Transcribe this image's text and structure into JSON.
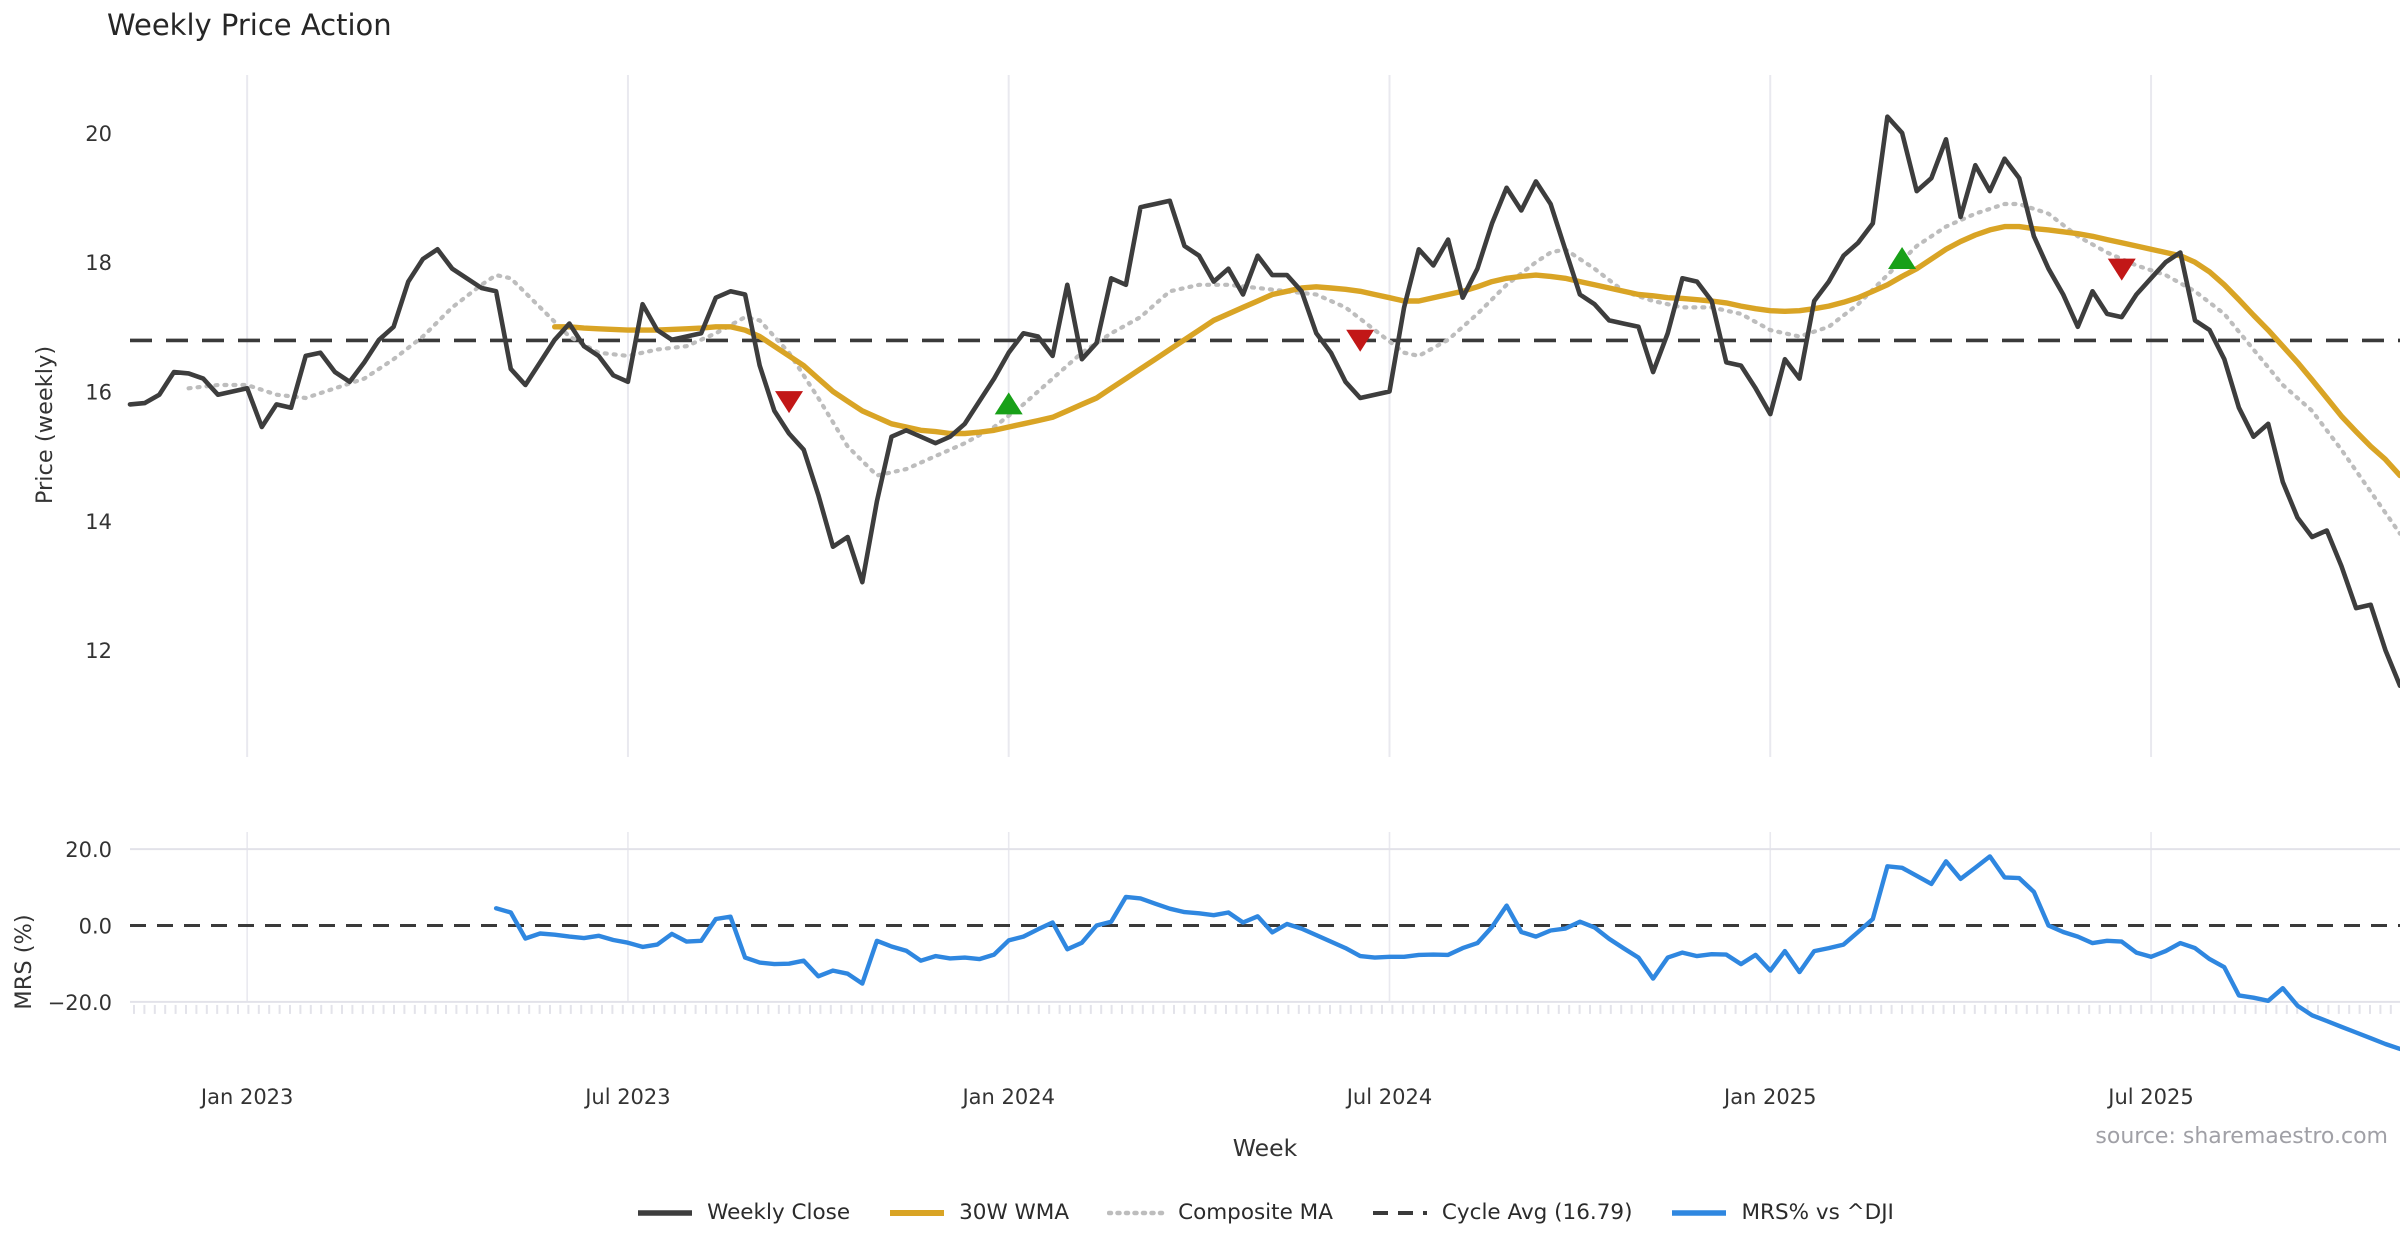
{
  "title": "Weekly Price Action",
  "source_note": "source: sharemaestro.com",
  "colors": {
    "close": "#3d3d3d",
    "wma": "#d9a425",
    "composite": "#bdbdbd",
    "cycle": "#3a3a3a",
    "mrs": "#2f87e0",
    "sell": "#c21717",
    "buy": "#18a018",
    "grid": "#e9e9ef",
    "mrs_grid": "#e2e2e9",
    "minor_tick": "#e3e3ea",
    "tick_text": "#333333"
  },
  "chart_data": {
    "type": "line",
    "x_label": "Week",
    "x_unit": "week_index",
    "x_range_weeks": [
      0,
      155
    ],
    "grid": "vertical-months",
    "legend_position": "bottom-center",
    "x_ticks": [
      {
        "week": 8,
        "label": "Jan 2023"
      },
      {
        "week": 34,
        "label": "Jul 2023"
      },
      {
        "week": 60,
        "label": "Jan 2024"
      },
      {
        "week": 86,
        "label": "Jul 2024"
      },
      {
        "week": 112,
        "label": "Jan 2025"
      },
      {
        "week": 138,
        "label": "Jul 2025"
      }
    ],
    "legend": [
      {
        "label": "Weekly Close",
        "series": "close",
        "style": "solid"
      },
      {
        "label": "30W WMA",
        "series": "wma",
        "style": "solid"
      },
      {
        "label": "Composite MA",
        "series": "composite",
        "style": "dotted"
      },
      {
        "label": "Cycle Avg (16.79)",
        "series": "cycle",
        "style": "dashed"
      },
      {
        "label": "MRS% vs ^DJI",
        "series": "mrs",
        "style": "solid"
      }
    ],
    "price_panel": {
      "y_label": "Price (weekly)",
      "y_range": [
        10.3,
        21.05
      ],
      "cycle_avg": 16.79,
      "y_ticks": [
        {
          "value": 20,
          "label": "20"
        },
        {
          "value": 18,
          "label": "18"
        },
        {
          "value": 16,
          "label": "16"
        },
        {
          "value": 14,
          "label": "14"
        },
        {
          "value": 12,
          "label": "12"
        }
      ],
      "series": {
        "weekly_close": {
          "start_week": 0,
          "values": [
            15.8,
            15.82,
            15.95,
            16.3,
            16.28,
            16.2,
            15.95,
            16.0,
            16.05,
            15.45,
            15.8,
            15.75,
            16.55,
            16.6,
            16.3,
            16.15,
            16.45,
            16.8,
            17.0,
            17.7,
            18.05,
            18.2,
            17.9,
            17.75,
            17.6,
            17.55,
            16.35,
            16.1,
            16.45,
            16.8,
            17.05,
            16.7,
            16.55,
            16.25,
            16.15,
            17.35,
            16.95,
            16.8,
            16.85,
            16.9,
            17.45,
            17.55,
            17.5,
            16.4,
            15.7,
            15.35,
            15.1,
            14.4,
            13.6,
            13.75,
            13.05,
            14.3,
            15.3,
            15.4,
            15.3,
            15.2,
            15.3,
            15.5,
            15.85,
            16.2,
            16.6,
            16.9,
            16.85,
            16.55,
            17.65,
            16.5,
            16.75,
            17.75,
            17.65,
            18.85,
            18.9,
            18.95,
            18.25,
            18.1,
            17.7,
            17.9,
            17.5,
            18.1,
            17.8,
            17.8,
            17.55,
            16.9,
            16.6,
            16.15,
            15.9,
            15.95,
            16.0,
            17.3,
            18.2,
            17.95,
            18.35,
            17.45,
            17.9,
            18.6,
            19.15,
            18.8,
            19.25,
            18.9,
            18.2,
            17.5,
            17.35,
            17.1,
            17.05,
            17.0,
            16.3,
            16.9,
            17.75,
            17.7,
            17.4,
            16.45,
            16.4,
            16.05,
            15.65,
            16.5,
            16.2,
            17.4,
            17.7,
            18.1,
            18.3,
            18.6,
            20.25,
            20.0,
            19.1,
            19.3,
            19.9,
            18.7,
            19.5,
            19.1,
            19.6,
            19.3,
            18.4,
            17.9,
            17.5,
            17.0,
            17.55,
            17.2,
            17.15,
            17.5,
            17.75,
            18.0,
            18.15,
            17.1,
            16.95,
            16.5,
            15.75,
            15.3,
            15.5,
            14.6,
            14.05,
            13.75,
            13.85,
            13.3,
            12.65,
            12.7,
            12.0,
            11.45
          ]
        },
        "wma_30w": {
          "start_week": 29,
          "values": [
            17.0,
            17.0,
            16.98,
            16.97,
            16.96,
            16.95,
            16.95,
            16.95,
            16.96,
            16.97,
            16.98,
            17.0,
            17.0,
            16.95,
            16.85,
            16.7,
            16.55,
            16.4,
            16.2,
            16.0,
            15.85,
            15.7,
            15.6,
            15.5,
            15.45,
            15.4,
            15.38,
            15.35,
            15.35,
            15.37,
            15.4,
            15.45,
            15.5,
            15.55,
            15.6,
            15.7,
            15.8,
            15.9,
            16.05,
            16.2,
            16.35,
            16.5,
            16.65,
            16.8,
            16.95,
            17.1,
            17.2,
            17.3,
            17.4,
            17.5,
            17.55,
            17.6,
            17.62,
            17.6,
            17.58,
            17.55,
            17.5,
            17.45,
            17.4,
            17.4,
            17.45,
            17.5,
            17.55,
            17.62,
            17.7,
            17.75,
            17.78,
            17.8,
            17.78,
            17.75,
            17.7,
            17.65,
            17.6,
            17.55,
            17.5,
            17.48,
            17.45,
            17.44,
            17.42,
            17.4,
            17.37,
            17.32,
            17.28,
            17.25,
            17.24,
            17.25,
            17.28,
            17.32,
            17.38,
            17.45,
            17.55,
            17.65,
            17.78,
            17.9,
            18.05,
            18.2,
            18.32,
            18.42,
            18.5,
            18.55,
            18.55,
            18.52,
            18.5,
            18.47,
            18.44,
            18.4,
            18.35,
            18.3,
            18.25,
            18.2,
            18.15,
            18.1,
            18.0,
            17.85,
            17.65,
            17.42,
            17.18,
            16.95,
            16.7,
            16.45,
            16.18,
            15.9,
            15.62,
            15.38,
            15.15,
            14.95,
            14.7
          ]
        },
        "composite_ma": {
          "points": [
            [
              4,
              16.05
            ],
            [
              6,
              16.1
            ],
            [
              8,
              16.1
            ],
            [
              10,
              15.95
            ],
            [
              12,
              15.9
            ],
            [
              14,
              16.05
            ],
            [
              16,
              16.2
            ],
            [
              18,
              16.5
            ],
            [
              20,
              16.85
            ],
            [
              22,
              17.3
            ],
            [
              24,
              17.65
            ],
            [
              25,
              17.8
            ],
            [
              26,
              17.75
            ],
            [
              28,
              17.3
            ],
            [
              30,
              16.85
            ],
            [
              32,
              16.6
            ],
            [
              34,
              16.55
            ],
            [
              36,
              16.65
            ],
            [
              38,
              16.7
            ],
            [
              40,
              16.9
            ],
            [
              42,
              17.15
            ],
            [
              43,
              17.1
            ],
            [
              45,
              16.6
            ],
            [
              47,
              15.9
            ],
            [
              49,
              15.15
            ],
            [
              51,
              14.7
            ],
            [
              53,
              14.8
            ],
            [
              55,
              15.0
            ],
            [
              57,
              15.2
            ],
            [
              59,
              15.45
            ],
            [
              61,
              15.8
            ],
            [
              63,
              16.2
            ],
            [
              65,
              16.6
            ],
            [
              67,
              16.9
            ],
            [
              69,
              17.15
            ],
            [
              71,
              17.55
            ],
            [
              73,
              17.65
            ],
            [
              75,
              17.65
            ],
            [
              77,
              17.6
            ],
            [
              79,
              17.55
            ],
            [
              81,
              17.5
            ],
            [
              83,
              17.3
            ],
            [
              85,
              16.95
            ],
            [
              87,
              16.6
            ],
            [
              88,
              16.55
            ],
            [
              90,
              16.8
            ],
            [
              92,
              17.2
            ],
            [
              94,
              17.65
            ],
            [
              96,
              18.0
            ],
            [
              97,
              18.15
            ],
            [
              98,
              18.2
            ],
            [
              100,
              17.9
            ],
            [
              102,
              17.55
            ],
            [
              104,
              17.4
            ],
            [
              106,
              17.3
            ],
            [
              108,
              17.3
            ],
            [
              110,
              17.2
            ],
            [
              112,
              16.95
            ],
            [
              114,
              16.85
            ],
            [
              116,
              17.0
            ],
            [
              118,
              17.35
            ],
            [
              120,
              17.8
            ],
            [
              122,
              18.25
            ],
            [
              124,
              18.55
            ],
            [
              126,
              18.75
            ],
            [
              128,
              18.9
            ],
            [
              129,
              18.9
            ],
            [
              131,
              18.75
            ],
            [
              133,
              18.4
            ],
            [
              135,
              18.15
            ],
            [
              137,
              17.95
            ],
            [
              139,
              17.8
            ],
            [
              141,
              17.55
            ],
            [
              143,
              17.2
            ],
            [
              145,
              16.65
            ],
            [
              147,
              16.1
            ],
            [
              149,
              15.7
            ],
            [
              151,
              15.1
            ],
            [
              153,
              14.45
            ],
            [
              155,
              13.8
            ]
          ]
        }
      },
      "signals": {
        "sell": [
          {
            "week": 45,
            "price": 15.85
          },
          {
            "week": 84,
            "price": 16.8
          },
          {
            "week": 136,
            "price": 17.9
          }
        ],
        "buy": [
          {
            "week": 60,
            "price": 15.8
          },
          {
            "week": 121,
            "price": 18.05
          }
        ]
      }
    },
    "mrs_panel": {
      "y_label": "MRS (%)",
      "y_range": [
        -35.2,
        25.0
      ],
      "zero_line": 0,
      "y_ticks": [
        {
          "value": 20,
          "label": "20.0"
        },
        {
          "value": 0,
          "label": "0.0"
        },
        {
          "value": -20,
          "label": "−20.0"
        }
      ],
      "series": {
        "mrs_vs_dji": {
          "start_week": 25,
          "values": [
            4.5,
            3.4,
            -3.4,
            -2.1,
            -2.4,
            -2.9,
            -3.3,
            -2.7,
            -3.8,
            -4.5,
            -5.6,
            -5.0,
            -2.2,
            -4.2,
            -4.0,
            1.7,
            2.3,
            -8.4,
            -9.7,
            -10.1,
            -10.0,
            -9.2,
            -13.3,
            -11.8,
            -12.6,
            -15.2,
            -4.0,
            -5.5,
            -6.6,
            -9.2,
            -8.0,
            -8.6,
            -8.4,
            -8.8,
            -7.6,
            -3.9,
            -2.9,
            -1.0,
            0.8,
            -6.2,
            -4.5,
            0.0,
            1.0,
            7.5,
            7.1,
            5.7,
            4.4,
            3.5,
            3.2,
            2.7,
            3.4,
            0.8,
            2.4,
            -1.8,
            0.4,
            -0.8,
            -2.5,
            -4.2,
            -5.9,
            -8.0,
            -8.4,
            -8.2,
            -8.2,
            -7.7,
            -7.6,
            -7.7,
            -5.9,
            -4.6,
            -0.4,
            5.2,
            -1.7,
            -2.9,
            -1.3,
            -0.8,
            1.0,
            -0.5,
            -3.5,
            -6.0,
            -8.4,
            -13.9,
            -8.4,
            -7.1,
            -8.0,
            -7.5,
            -7.6,
            -10.1,
            -7.7,
            -11.8,
            -6.7,
            -12.2,
            -6.7,
            -5.9,
            -5.0,
            -1.7,
            1.7,
            15.5,
            15.1,
            13.0,
            10.9,
            16.8,
            12.2,
            15.1,
            18.1,
            12.6,
            12.4,
            8.8,
            0.0,
            -1.7,
            -2.9,
            -4.6,
            -4.0,
            -4.2,
            -7.1,
            -8.2,
            -6.7,
            -4.6,
            -5.9,
            -8.8,
            -10.9,
            -18.3,
            -18.9,
            -19.7,
            -16.4,
            -21.0,
            -23.5,
            -25.0,
            -26.5,
            -28.0,
            -29.5,
            -31.0,
            -32.3
          ]
        }
      }
    }
  }
}
